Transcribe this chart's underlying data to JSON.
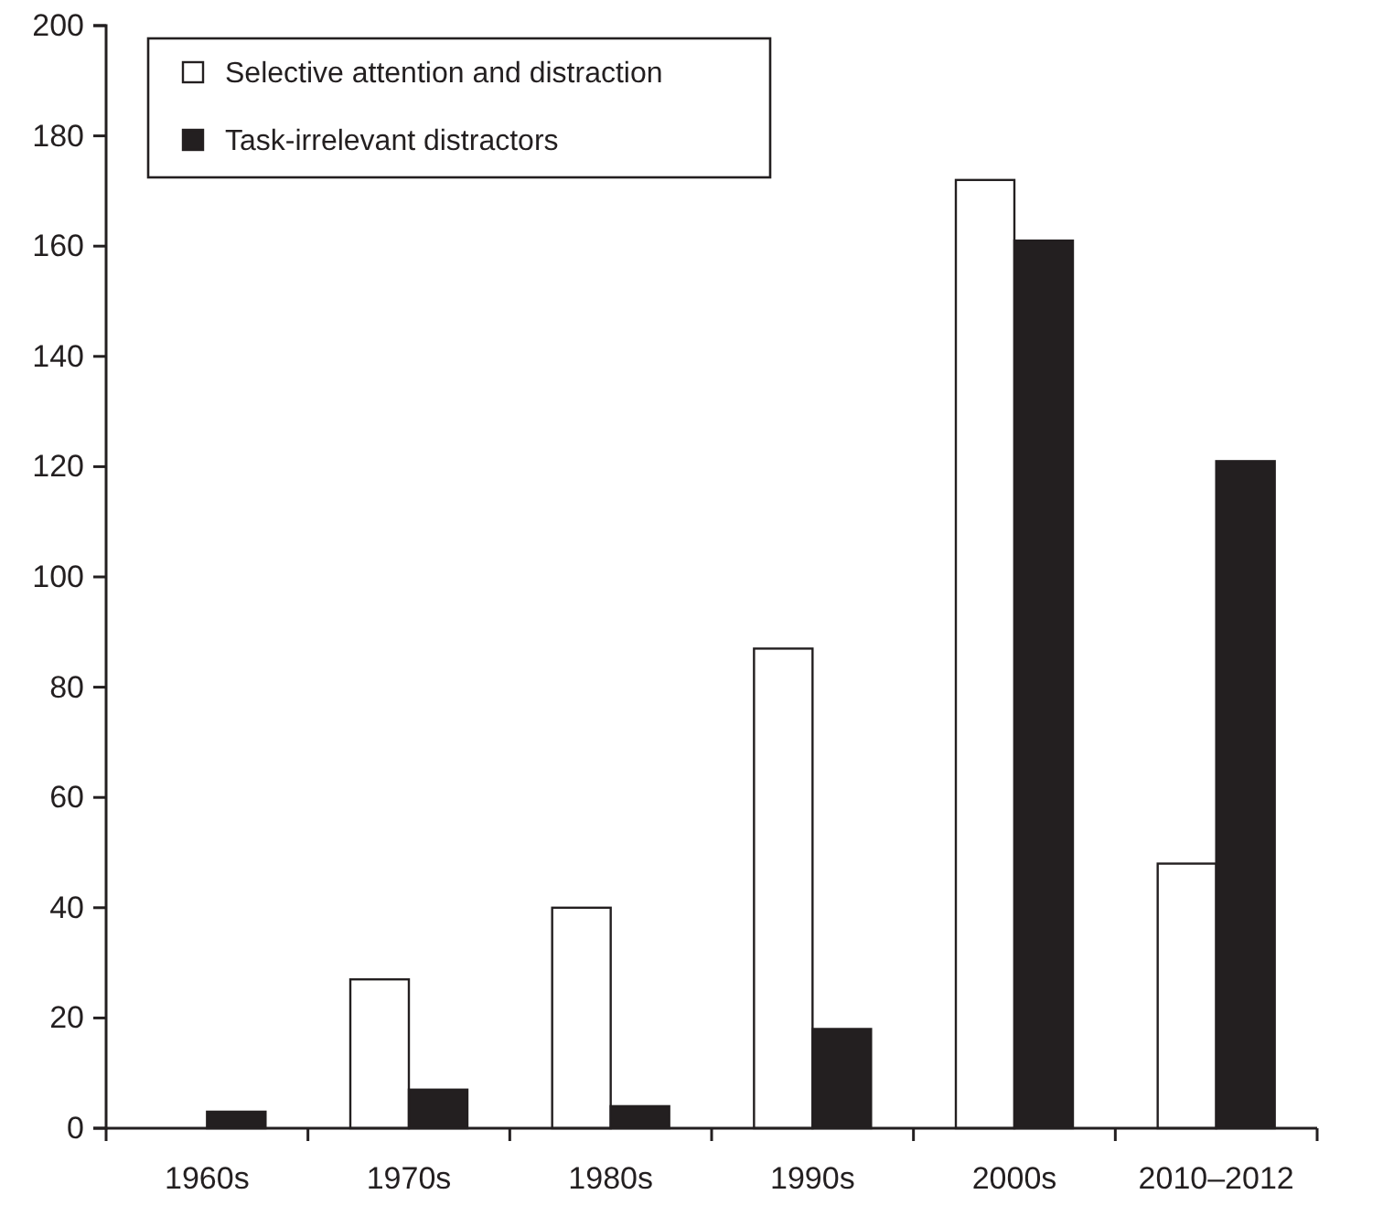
{
  "chart_data": {
    "type": "bar",
    "categories": [
      "1960s",
      "1970s",
      "1980s",
      "1990s",
      "2000s",
      "2010–2012"
    ],
    "series": [
      {
        "name": "Selective attention and distraction",
        "color": "#ffffff",
        "values": [
          0,
          27,
          40,
          87,
          172,
          48
        ]
      },
      {
        "name": "Task-irrelevant distractors",
        "color": "#231f20",
        "values": [
          3,
          7,
          4,
          18,
          161,
          121
        ]
      }
    ],
    "ylim": [
      0,
      200
    ],
    "yticks": [
      0,
      20,
      40,
      60,
      80,
      100,
      120,
      140,
      160,
      180,
      200
    ],
    "grid": false,
    "legend": "top left"
  }
}
